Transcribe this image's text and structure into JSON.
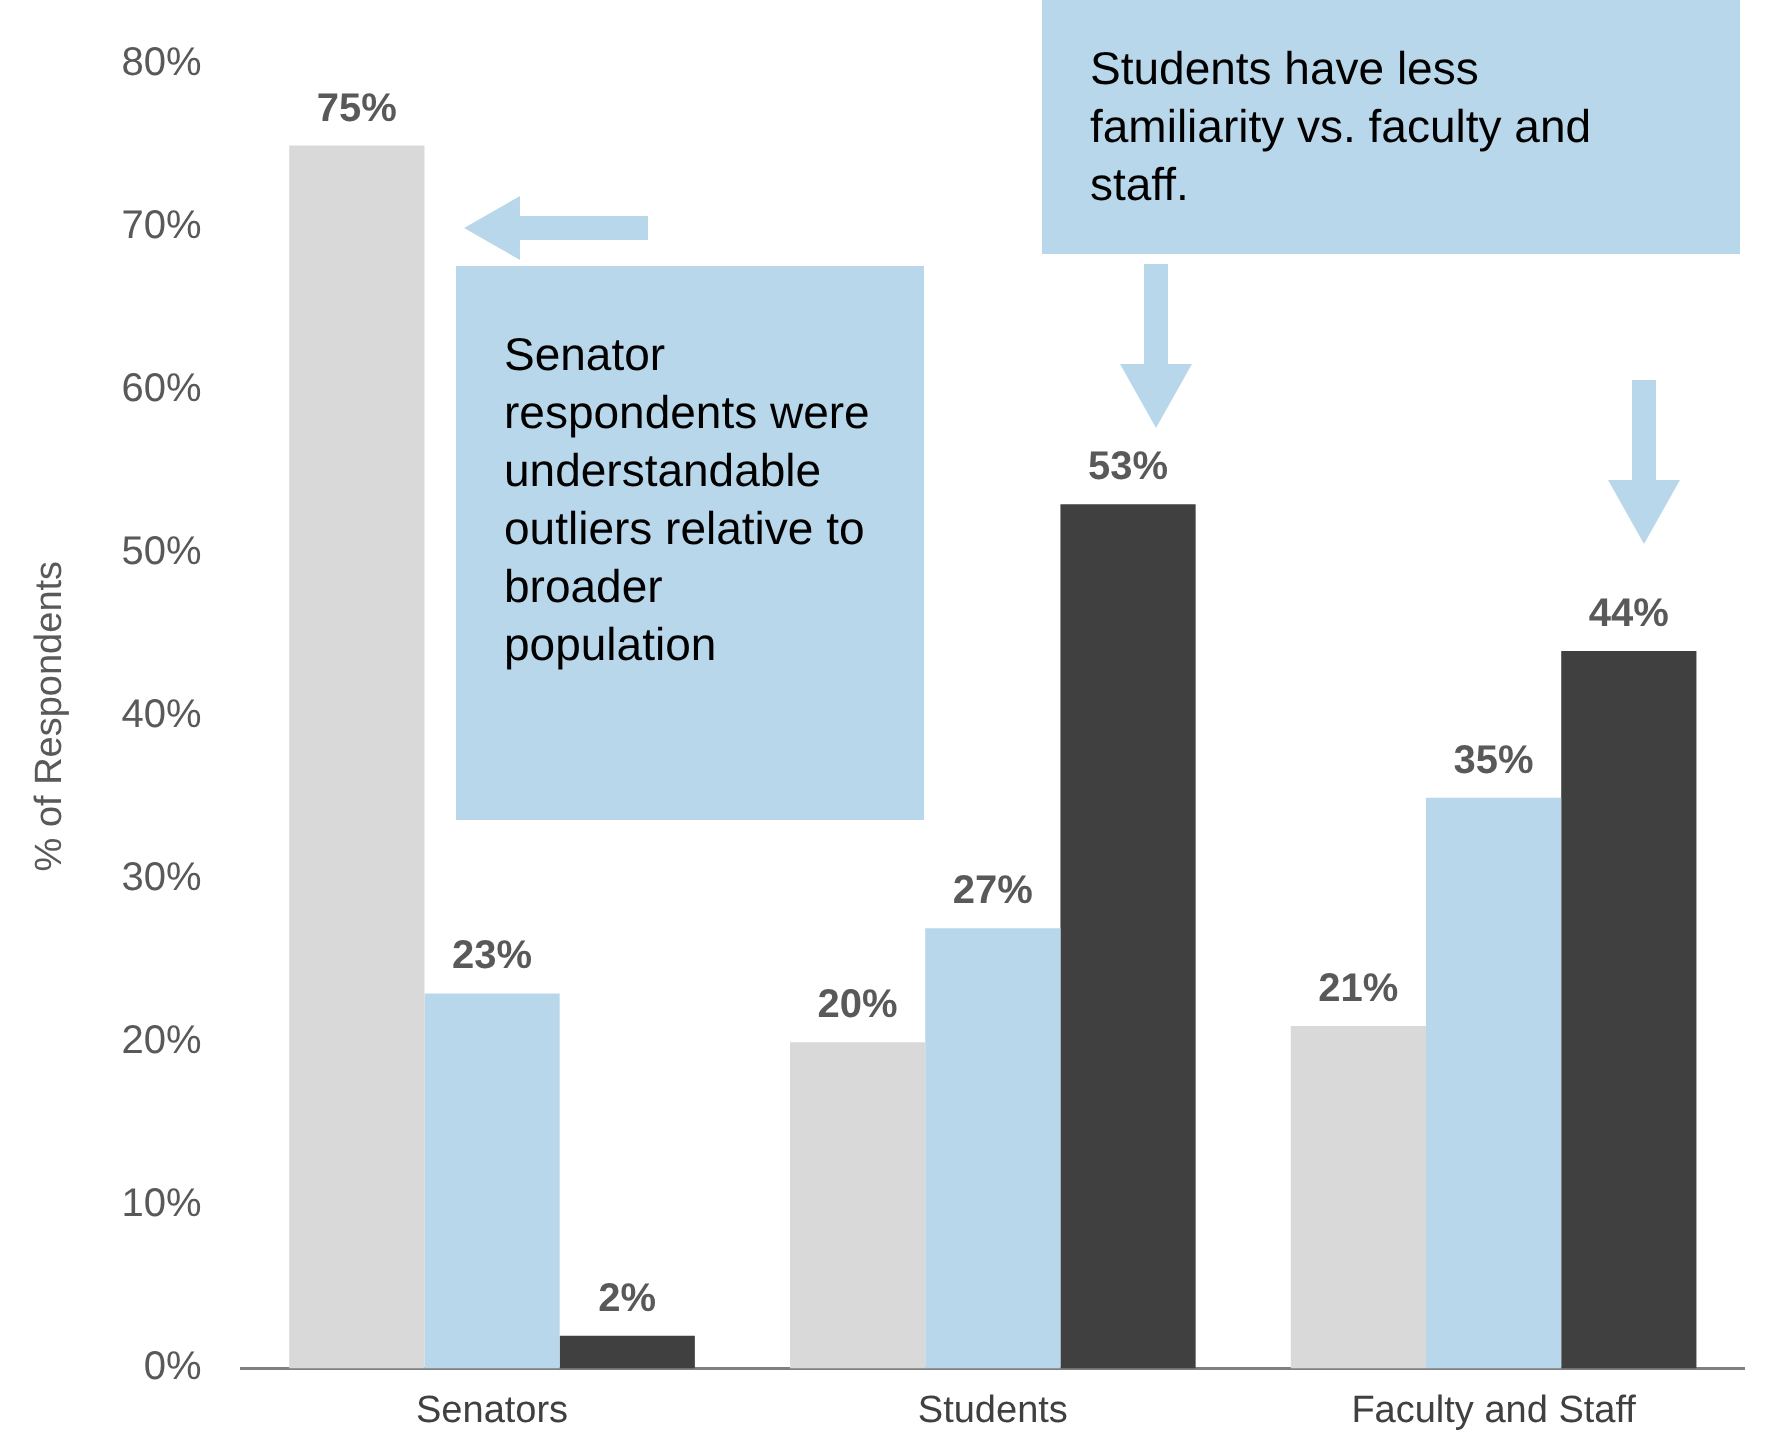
{
  "chart_data": {
    "type": "bar",
    "ylabel": "% of Respondents",
    "categories": [
      "Senators",
      "Students",
      "Faculty and Staff"
    ],
    "series": [
      {
        "color": "#d9d9d9",
        "values": [
          75,
          20,
          21
        ],
        "value_labels": [
          "75%",
          "20%",
          "21%"
        ]
      },
      {
        "color": "#b9d7ea",
        "values": [
          23,
          27,
          35
        ],
        "value_labels": [
          "23%",
          "27%",
          "35%"
        ]
      },
      {
        "color": "#404040",
        "values": [
          2,
          53,
          44
        ],
        "value_labels": [
          "2%",
          "53%",
          "44%"
        ]
      }
    ],
    "ylim": [
      0,
      80
    ],
    "yticks": [
      {
        "value": 0,
        "label": "0%"
      },
      {
        "value": 10,
        "label": "10%"
      },
      {
        "value": 20,
        "label": "20%"
      },
      {
        "value": 30,
        "label": "30%"
      },
      {
        "value": 40,
        "label": "40%"
      },
      {
        "value": 50,
        "label": "50%"
      },
      {
        "value": 60,
        "label": "60%"
      },
      {
        "value": 70,
        "label": "70%"
      },
      {
        "value": 80,
        "label": "80%"
      }
    ],
    "grid": false,
    "legend": false,
    "annotations": [
      "Senator respondents were understandable outliers relative to broader population",
      "Students have less familiarity vs. faculty and staff."
    ]
  }
}
